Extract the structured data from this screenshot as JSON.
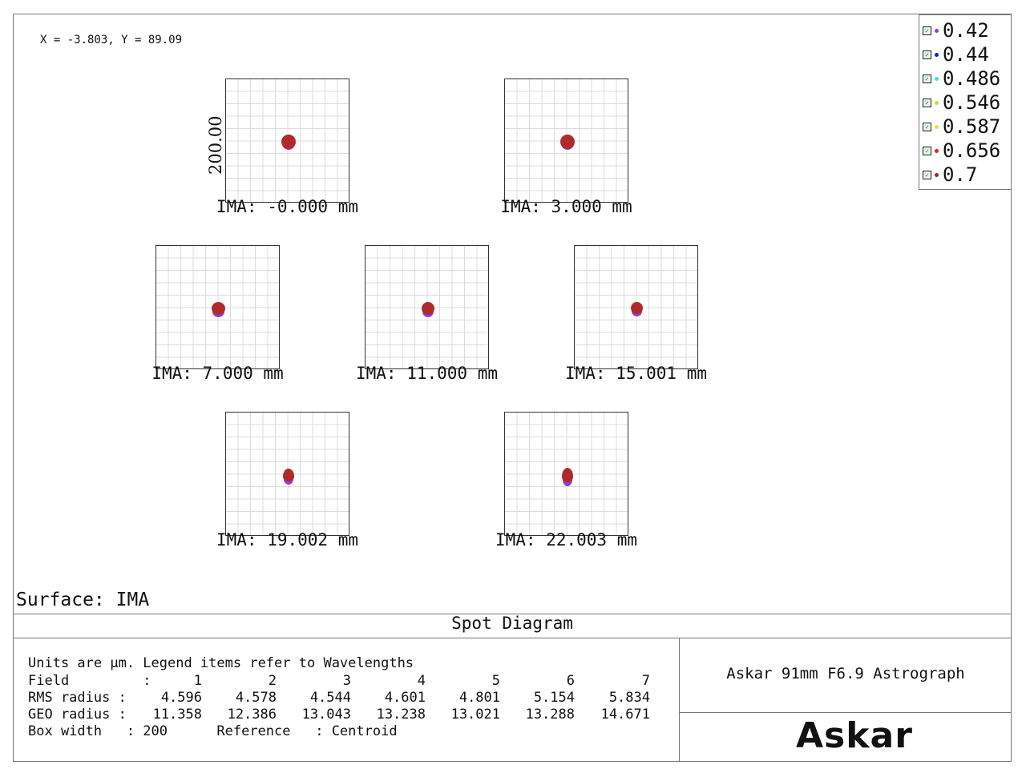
{
  "coords_readout": "X = -3.803, Y = 89.09",
  "y_axis_label": "200.00",
  "legend": [
    {
      "label": "0.42",
      "color": "#8a3fd1"
    },
    {
      "label": "0.44",
      "color": "#1a1ad6"
    },
    {
      "label": "0.486",
      "color": "#33e6e6"
    },
    {
      "label": "0.546",
      "color": "#b8e632"
    },
    {
      "label": "0.587",
      "color": "#e6e632"
    },
    {
      "label": "0.656",
      "color": "#e62020"
    },
    {
      "label": "0.7",
      "color": "#9a2a2a"
    }
  ],
  "fields": [
    {
      "label": "IMA: -0.000 mm"
    },
    {
      "label": "IMA: 3.000 mm"
    },
    {
      "label": "IMA: 7.000 mm"
    },
    {
      "label": "IMA: 11.000 mm"
    },
    {
      "label": "IMA: 15.001 mm"
    },
    {
      "label": "IMA: 19.002 mm"
    },
    {
      "label": "IMA: 22.003 mm"
    }
  ],
  "surface_label": "Surface: IMA",
  "title": "Spot Diagram",
  "info": {
    "units_line": "Units are µm. Legend items refer to Wavelengths",
    "field_label": "Field         :",
    "field_values": [
      "1",
      "2",
      "3",
      "4",
      "5",
      "6",
      "7"
    ],
    "rms_label": "RMS radius :",
    "rms_values": [
      "4.596",
      "4.578",
      "4.544",
      "4.601",
      "4.801",
      "5.154",
      "5.834"
    ],
    "geo_label": "GEO radius :",
    "geo_values": [
      "11.358",
      "12.386",
      "13.043",
      "13.238",
      "13.021",
      "13.288",
      "14.671"
    ],
    "box_width_line": "Box width   : 200      Reference   : Centroid"
  },
  "product": "Askar 91mm F6.9 Astrograph",
  "logo": "Askar",
  "colors": {
    "spot_primary": "#b02a2a",
    "spot_under": "#8a3fd1"
  }
}
